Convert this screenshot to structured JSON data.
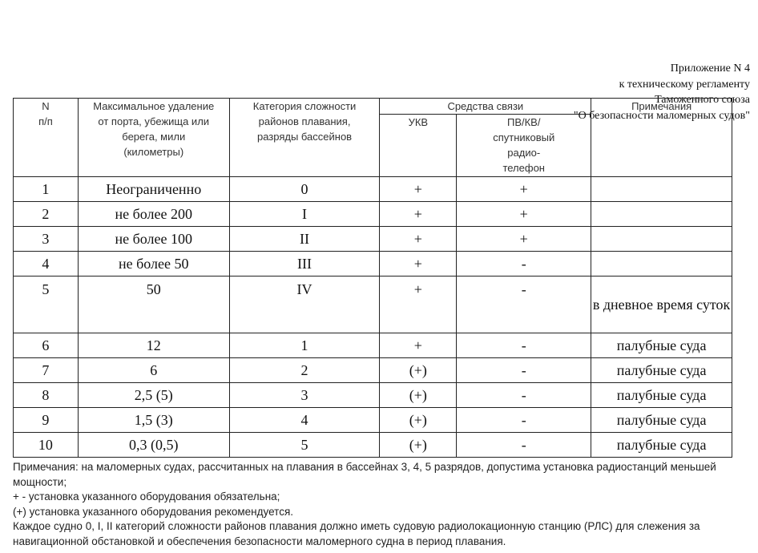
{
  "header": {
    "lines": [
      "Приложение N 4",
      "к техническому регламенту",
      "Таможенного союза",
      "\"О безопасности маломерных судов\""
    ]
  },
  "table": {
    "col_num": "N\nп/п",
    "col_distance": "Максимальное удаление от порта, убежища или берега, мили (километры)",
    "col_category": "Категория сложности районов плавания, разряды бассейнов",
    "col_comm": "Средства связи",
    "col_vhf": "УКВ",
    "col_hf": "ПВ/КВ/ спутниковый радио- телефон",
    "col_notes": "Примечания",
    "rows": [
      [
        "1",
        "Неограниченно",
        "0",
        "+",
        "+",
        ""
      ],
      [
        "2",
        "не более 200",
        "I",
        "+",
        "+",
        ""
      ],
      [
        "3",
        "не более 100",
        "II",
        "+",
        "+",
        ""
      ],
      [
        "4",
        "не более 50",
        "III",
        "+",
        "-",
        ""
      ],
      [
        "5",
        "50",
        "IV",
        "+",
        "-",
        "в дневное время суток"
      ],
      [
        "6",
        "12",
        "1",
        "+",
        "-",
        "палубные суда"
      ],
      [
        "7",
        "6",
        "2",
        "(+)",
        "-",
        "палубные суда"
      ],
      [
        "8",
        "2,5 (5)",
        "3",
        "(+)",
        "-",
        "палубные суда"
      ],
      [
        "9",
        "1,5 (3)",
        "4",
        "(+)",
        "-",
        "палубные суда"
      ],
      [
        "10",
        "0,3 (0,5)",
        "5",
        "(+)",
        "-",
        "палубные суда"
      ]
    ]
  },
  "notes": [
    "Примечания: на маломерных судах, рассчитанных на плавания в бассейнах 3, 4, 5 разрядов, допустима установка радиостанций меньшей мощности;",
    "+ - установка указанного оборудования обязательна;",
    "(+) установка указанного оборудования рекомендуется.",
    "Каждое судно 0, I, II категорий сложности районов плавания должно иметь судовую радиолокационную станцию (РЛС) для слежения за навигационной обстановкой и обеспечения безопасности маломерного судна в период плавания."
  ]
}
